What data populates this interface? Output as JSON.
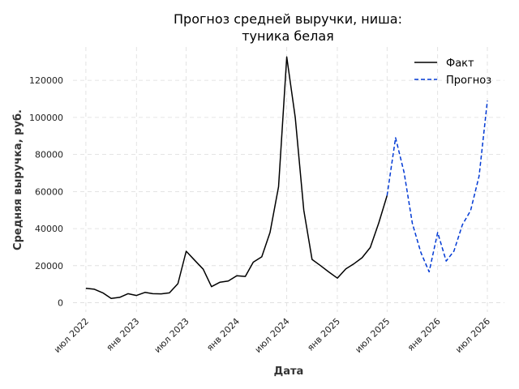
{
  "chart_data": {
    "type": "line",
    "title_lines": [
      "Прогноз средней выручки, ниша:",
      "туника белая"
    ],
    "xlabel": "Дата",
    "ylabel": "Средняя выручка, руб.",
    "grid": true,
    "legend_position": "top-right",
    "x_axis": {
      "tick_dates": [
        "2022-07-01",
        "2023-01-01",
        "2023-07-01",
        "2024-01-01",
        "2024-07-01",
        "2025-01-01",
        "2025-07-01",
        "2026-01-01",
        "2026-07-01"
      ],
      "tick_labels": [
        "июл 2022",
        "янв 2023",
        "июл 2023",
        "янв 2024",
        "июл 2024",
        "янв 2025",
        "июл 2025",
        "янв 2026",
        "июл 2026"
      ],
      "range": [
        "2022-05-15",
        "2026-09-01"
      ]
    },
    "y_axis": {
      "ticks": [
        0,
        20000,
        40000,
        60000,
        80000,
        100000,
        120000
      ],
      "tick_labels": [
        "0",
        "20000",
        "40000",
        "60000",
        "80000",
        "100000",
        "120000"
      ],
      "range": [
        -5000,
        138000
      ]
    },
    "series": [
      {
        "name": "Факт",
        "color": "#000000",
        "style": "solid",
        "points": [
          [
            "2022-07-01",
            7800
          ],
          [
            "2022-08-01",
            7300
          ],
          [
            "2022-09-01",
            5300
          ],
          [
            "2022-10-01",
            2300
          ],
          [
            "2022-11-01",
            2900
          ],
          [
            "2022-12-01",
            4900
          ],
          [
            "2023-01-01",
            3900
          ],
          [
            "2023-02-01",
            5600
          ],
          [
            "2023-03-01",
            4900
          ],
          [
            "2023-04-01",
            4800
          ],
          [
            "2023-05-01",
            5300
          ],
          [
            "2023-06-01",
            10300
          ],
          [
            "2023-07-01",
            27800
          ],
          [
            "2023-08-01",
            22900
          ],
          [
            "2023-09-01",
            18100
          ],
          [
            "2023-10-01",
            8700
          ],
          [
            "2023-11-01",
            11100
          ],
          [
            "2023-12-01",
            11700
          ],
          [
            "2024-01-01",
            14600
          ],
          [
            "2024-02-01",
            14200
          ],
          [
            "2024-03-01",
            21900
          ],
          [
            "2024-04-01",
            24800
          ],
          [
            "2024-05-01",
            38000
          ],
          [
            "2024-06-01",
            62600
          ],
          [
            "2024-07-01",
            132600
          ],
          [
            "2024-08-01",
            99900
          ],
          [
            "2024-09-01",
            50000
          ],
          [
            "2024-10-01",
            23400
          ],
          [
            "2024-11-01",
            20000
          ],
          [
            "2024-12-01",
            16600
          ],
          [
            "2025-01-01",
            13300
          ],
          [
            "2025-02-01",
            18300
          ],
          [
            "2025-03-01",
            20900
          ],
          [
            "2025-04-01",
            24300
          ],
          [
            "2025-05-01",
            29800
          ],
          [
            "2025-06-01",
            43100
          ],
          [
            "2025-07-01",
            57800
          ]
        ]
      },
      {
        "name": "Прогноз",
        "color": "#0039d4",
        "style": "dashed",
        "points": [
          [
            "2025-07-01",
            57800
          ],
          [
            "2025-08-01",
            89000
          ],
          [
            "2025-09-01",
            70300
          ],
          [
            "2025-10-01",
            42800
          ],
          [
            "2025-11-01",
            27100
          ],
          [
            "2025-12-01",
            16700
          ],
          [
            "2026-01-01",
            37900
          ],
          [
            "2026-02-01",
            22500
          ],
          [
            "2026-03-01",
            27800
          ],
          [
            "2026-04-01",
            42100
          ],
          [
            "2026-05-01",
            49700
          ],
          [
            "2026-06-01",
            68400
          ],
          [
            "2026-07-01",
            109000
          ]
        ]
      }
    ]
  }
}
